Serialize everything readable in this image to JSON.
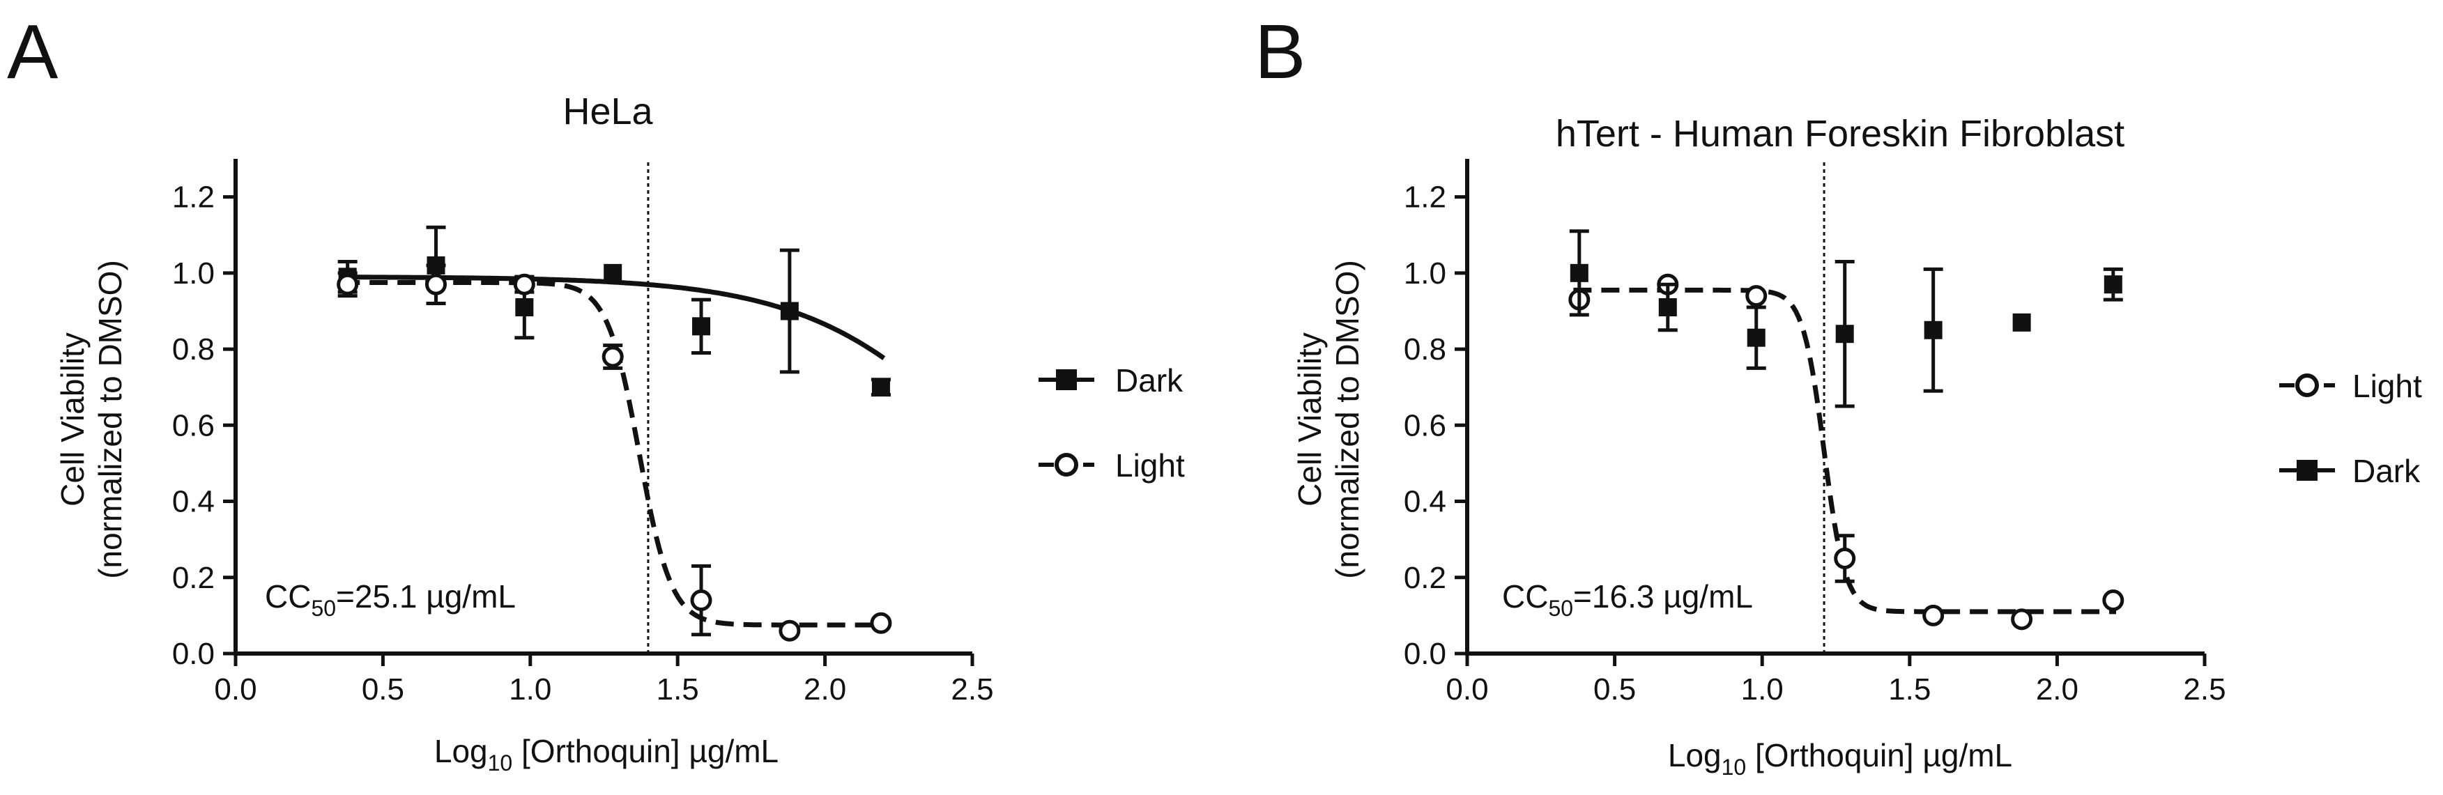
{
  "chart_data": [
    {
      "panel_label": "A",
      "type": "scatter",
      "title": "HeLa",
      "xlabel_main": "Log",
      "xlabel_sub": "10",
      "xlabel_rest": " [Orthoquin] µg/mL",
      "ylabel_line1": "Cell Viability",
      "ylabel_line2": "(normalized to DMSO)",
      "xlim": [
        0.0,
        2.5
      ],
      "ylim": [
        0.0,
        1.3
      ],
      "xticks": [
        "0.0",
        "0.5",
        "1.0",
        "1.5",
        "2.0",
        "2.5"
      ],
      "yticks": [
        "0.0",
        "0.2",
        "0.4",
        "0.6",
        "0.8",
        "1.0",
        "1.2"
      ],
      "annotation_main": "CC",
      "annotation_sub": "50",
      "annotation_rest": "=25.1 µg/mL",
      "vline_x": 1.4,
      "legend": [
        {
          "name": "Dark",
          "marker": "square"
        },
        {
          "name": "Light",
          "marker": "circle"
        }
      ],
      "series": [
        {
          "name": "Dark",
          "marker": "square",
          "x": [
            0.38,
            0.68,
            0.98,
            1.28,
            1.58,
            1.88,
            2.19
          ],
          "y": [
            0.99,
            1.02,
            0.91,
            1.0,
            0.86,
            0.9,
            0.7
          ],
          "err": [
            0.04,
            0.1,
            0.08,
            0.0,
            0.07,
            0.16,
            0.02
          ],
          "fit": {
            "top": 0.99,
            "bottom": 0.0,
            "logec50": 2.6,
            "hill": -1.4,
            "xmin": 0.36,
            "xmax": 2.2,
            "dashed": false
          }
        },
        {
          "name": "Light",
          "marker": "circle",
          "x": [
            0.38,
            0.68,
            0.98,
            1.28,
            1.58,
            1.88,
            2.19
          ],
          "y": [
            0.97,
            0.97,
            0.97,
            0.78,
            0.14,
            0.06,
            0.08
          ],
          "err": [
            0.03,
            0.05,
            0.02,
            0.03,
            0.09,
            0.0,
            0.0
          ],
          "fit": {
            "top": 0.975,
            "bottom": 0.075,
            "logec50": 1.37,
            "hill": -8,
            "xmin": 0.36,
            "xmax": 2.2,
            "dashed": true
          }
        }
      ]
    },
    {
      "panel_label": "B",
      "type": "scatter",
      "title": "hTert - Human Foreskin Fibroblast",
      "xlabel_main": "Log",
      "xlabel_sub": "10",
      "xlabel_rest": " [Orthoquin] µg/mL",
      "ylabel_line1": "Cell Viability",
      "ylabel_line2": "(normalized to DMSO)",
      "xlim": [
        0.0,
        2.5
      ],
      "ylim": [
        0.0,
        1.3
      ],
      "xticks": [
        "0.0",
        "0.5",
        "1.0",
        "1.5",
        "2.0",
        "2.5"
      ],
      "yticks": [
        "0.0",
        "0.2",
        "0.4",
        "0.6",
        "0.8",
        "1.0",
        "1.2"
      ],
      "annotation_main": "CC",
      "annotation_sub": "50",
      "annotation_rest": "=16.3 µg/mL",
      "vline_x": 1.21,
      "legend": [
        {
          "name": "Light",
          "marker": "circle"
        },
        {
          "name": "Dark",
          "marker": "square"
        }
      ],
      "series": [
        {
          "name": "Light",
          "marker": "circle",
          "x": [
            0.38,
            0.68,
            0.98,
            1.28,
            1.58,
            1.88,
            2.19
          ],
          "y": [
            0.93,
            0.97,
            0.94,
            0.25,
            0.1,
            0.09,
            0.14
          ],
          "err": [
            0.0,
            0.0,
            0.0,
            0.06,
            0.0,
            0.0,
            0.0
          ],
          "fit": {
            "top": 0.955,
            "bottom": 0.11,
            "logec50": 1.21,
            "hill": -12,
            "xmin": 0.36,
            "xmax": 2.2,
            "dashed": true
          }
        },
        {
          "name": "Dark",
          "marker": "square",
          "x": [
            0.38,
            0.68,
            0.98,
            1.28,
            1.58,
            1.88,
            2.19
          ],
          "y": [
            1.0,
            0.91,
            0.83,
            0.84,
            0.85,
            0.87,
            0.97
          ],
          "err": [
            0.11,
            0.06,
            0.08,
            0.19,
            0.16,
            0.0,
            0.04
          ]
        }
      ]
    }
  ]
}
